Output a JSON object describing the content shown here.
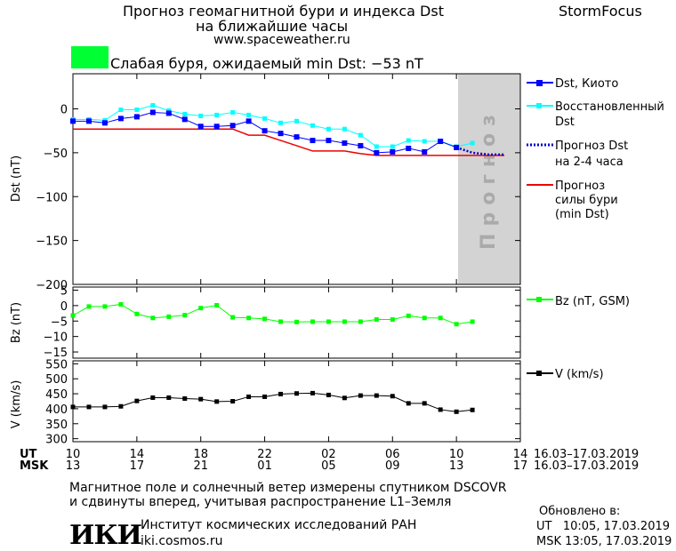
{
  "header": {
    "title_line1": "Прогноз геомагнитной бури и индекса Dst",
    "title_line2": "на ближайшие часы",
    "url": "www.spaceweather.ru",
    "brand": "StormFocus",
    "status_text": "Слабая буря, ожидаемый min Dst: −53 nT",
    "status_color": "#00ff33"
  },
  "colors": {
    "dst": "#0000ff",
    "restored": "#00ffff",
    "forecast": "#0000cc",
    "storm": "#ee0000",
    "bz": "#00ff00",
    "v": "#000000",
    "forecast_zone": "#d3d3d3",
    "forecast_zone_text": "#aaaaaa"
  },
  "chart_data": [
    {
      "type": "line",
      "ylabel": "Dst (nT)",
      "ylim": [
        -200,
        40
      ],
      "yticks": [
        0,
        -50,
        -100,
        -150,
        -200
      ],
      "forecast_zone_label": "Прогноз",
      "forecast_zone_x": [
        10,
        14
      ],
      "series": [
        {
          "name": "Dst, Киото",
          "x": [
            10,
            11,
            12,
            13,
            14,
            15,
            16,
            17,
            18,
            19,
            20,
            21,
            22,
            23,
            24,
            25,
            26,
            27,
            28,
            29,
            30,
            31,
            32,
            33,
            34
          ],
          "values": [
            -14,
            -14,
            -16,
            -11,
            -9,
            -4,
            -5,
            -12,
            -20,
            -20,
            -19,
            -14,
            -25,
            -28,
            -32,
            -36,
            -36,
            -39,
            -42,
            -50,
            -49,
            -45,
            -49,
            -37,
            -44
          ]
        },
        {
          "name": "Восстановленный Dst",
          "x": [
            10,
            11,
            12,
            13,
            14,
            15,
            16,
            17,
            18,
            19,
            20,
            21,
            22,
            23,
            24,
            25,
            26,
            27,
            28,
            29,
            30,
            31,
            32,
            33,
            34,
            35
          ],
          "values": [
            -12,
            -12,
            -13,
            -1,
            -1,
            4,
            -2,
            -6,
            -8,
            -7,
            -4,
            -7,
            -11,
            -16,
            -14,
            -19,
            -23,
            -23,
            -30,
            -43,
            -43,
            -36,
            -37,
            -37,
            -43,
            -39
          ]
        },
        {
          "name": "Прогноз Dst на 2-4 часа",
          "x": [
            34,
            35,
            36,
            37
          ],
          "values": [
            -44,
            -50,
            -52,
            -52
          ]
        },
        {
          "name": "Прогноз силы бури (min Dst)",
          "x": [
            10,
            20,
            21,
            22,
            23,
            24,
            25,
            26,
            27,
            28,
            29,
            37
          ],
          "values": [
            -23,
            -23,
            -30,
            -30,
            -36,
            -42,
            -48,
            -48,
            -48,
            -51,
            -53,
            -53
          ]
        }
      ]
    },
    {
      "type": "line",
      "ylabel": "Bz (nT)",
      "ylim": [
        -17,
        6
      ],
      "yticks": [
        5,
        0,
        -5,
        -10,
        -15
      ],
      "series": [
        {
          "name": "Bz (nT, GSM)",
          "x": [
            10,
            11,
            12,
            13,
            14,
            15,
            16,
            17,
            18,
            19,
            20,
            21,
            22,
            23,
            24,
            25,
            26,
            27,
            28,
            29,
            30,
            31,
            32,
            33,
            34,
            35
          ],
          "values": [
            -3.2,
            -0.3,
            -0.3,
            0.4,
            -2.7,
            -4.0,
            -3.6,
            -3.1,
            -0.8,
            0.1,
            -3.8,
            -4.0,
            -4.3,
            -5.2,
            -5.3,
            -5.2,
            -5.2,
            -5.2,
            -5.2,
            -4.5,
            -4.5,
            -3.3,
            -4.0,
            -4.0,
            -6.0,
            -5.2
          ]
        }
      ]
    },
    {
      "type": "line",
      "ylabel": "V (km/s)",
      "ylim": [
        290,
        560
      ],
      "yticks": [
        550,
        500,
        450,
        400,
        350,
        300
      ],
      "series": [
        {
          "name": "V (km/s)",
          "x": [
            10,
            11,
            12,
            13,
            14,
            15,
            16,
            17,
            18,
            19,
            20,
            21,
            22,
            23,
            24,
            25,
            26,
            27,
            28,
            29,
            30,
            31,
            32,
            33,
            34,
            35
          ],
          "values": [
            406,
            406,
            406,
            408,
            426,
            437,
            437,
            434,
            432,
            424,
            425,
            440,
            440,
            449,
            451,
            452,
            446,
            436,
            444,
            444,
            442,
            418,
            418,
            397,
            390,
            396
          ]
        }
      ]
    }
  ],
  "x_axis": {
    "ut_label": "UT",
    "msk_label": "MSK",
    "ut_ticks": [
      "10",
      "14",
      "18",
      "22",
      "02",
      "06",
      "10",
      "14"
    ],
    "msk_ticks": [
      "13",
      "17",
      "21",
      "01",
      "05",
      "09",
      "13",
      "17"
    ],
    "ut_range": "16.03–17.03.2019",
    "msk_range": "16.03–17.03.2019"
  },
  "footer": {
    "note_line1": "Магнитное поле и солнечный ветер измерены спутником DSCOVR",
    "note_line2": "и сдвинуты вперед, учитывая распространение L1–Земля",
    "logo": "ИКИ",
    "institute": "Институт космических исследований РАН",
    "institute_url": "iki.cosmos.ru",
    "updated_label": "Обновлено в:",
    "updated_ut": "UT   10:05, 17.03.2019",
    "updated_msk": "MSK 13:05, 17.03.2019"
  },
  "legend": {
    "dst_label": "Dst, Киото",
    "restored_line1": "Восстановленный",
    "restored_line2": "Dst",
    "forecast_line1": "Прогноз Dst",
    "forecast_line2": "на 2-4 часа",
    "storm_line1": "Прогноз",
    "storm_line2": "силы бури",
    "storm_line3": "(min Dst)",
    "bz_label": "Bz (nT, GSM)",
    "v_label": "V (km/s)"
  }
}
